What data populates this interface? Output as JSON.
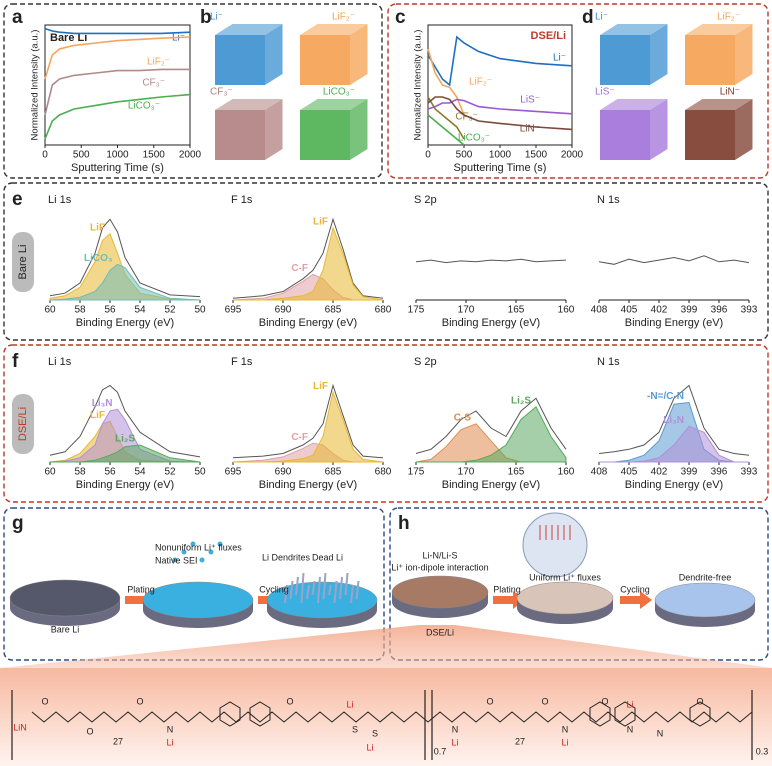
{
  "panel_labels": [
    "a",
    "b",
    "c",
    "d",
    "e",
    "f",
    "g",
    "h"
  ],
  "row_labels": [
    "Bare Li",
    "DSE/Li"
  ],
  "b": {
    "labels": [
      "Li⁻",
      "LiF₂⁻",
      "CF₃⁻",
      "LiCO₃⁻"
    ],
    "colors": [
      "#3a8fd0",
      "#f5a050",
      "#b08080",
      "#4caf50"
    ]
  },
  "d": {
    "labels": [
      "Li⁻",
      "LiF₂⁻",
      "LiS⁻",
      "LiN⁻"
    ],
    "colors": [
      "#3a8fd0",
      "#f5a050",
      "#a070d8",
      "#7b3a2a"
    ]
  },
  "g": {
    "texts": [
      "Nonuniform Li⁺ fluxes",
      "Native SEI",
      "Li Dendrites",
      "Dead Li",
      "Plating",
      "Cycling",
      "Bare Li"
    ]
  },
  "h": {
    "texts": [
      "Li-N/Li-S",
      "Li⁺ ion-dipole interaction",
      "Plating",
      "Uniform Li⁺ fluxes",
      "Cycling",
      "Dendrite-free",
      "DSE/Li"
    ]
  },
  "structure": {
    "labels": [
      "LiN",
      "O",
      "O",
      "27",
      "O",
      "N",
      "Li",
      "O",
      "S",
      "S",
      "Li",
      "Li",
      "0.7",
      "N",
      "Li",
      "O",
      "27",
      "O",
      "N",
      "O",
      "Li",
      "N",
      "Li",
      "N",
      "O",
      "0.3"
    ]
  },
  "chart_data": [
    {
      "type": "line",
      "title": "Bare Li",
      "x_label": "Sputtering Time (s)",
      "y_label": "Normalized Intensity (a.u.)",
      "xlim": [
        0,
        2000
      ],
      "ylim": [
        0,
        1
      ],
      "xticks": [
        0,
        500,
        1000,
        1500,
        2000
      ],
      "x": [
        0,
        100,
        200,
        400,
        700,
        1000,
        1300,
        1600,
        2000
      ],
      "series": [
        {
          "name": "Li⁻",
          "color": "#1f6fc0",
          "values": [
            0.97,
            0.95,
            0.94,
            0.93,
            0.93,
            0.93,
            0.93,
            0.93,
            0.94
          ]
        },
        {
          "name": "LiF₂⁻",
          "color": "#f5a55a",
          "values": [
            0.55,
            0.75,
            0.8,
            0.83,
            0.85,
            0.87,
            0.88,
            0.89,
            0.9
          ]
        },
        {
          "name": "CF₃⁻",
          "color": "#b08a8a",
          "values": [
            0.25,
            0.5,
            0.55,
            0.58,
            0.6,
            0.62,
            0.62,
            0.63,
            0.63
          ]
        },
        {
          "name": "LiCO₃⁻",
          "color": "#4caf50",
          "values": [
            0.05,
            0.2,
            0.25,
            0.3,
            0.33,
            0.36,
            0.38,
            0.4,
            0.42
          ]
        }
      ]
    },
    {
      "type": "line",
      "title": "DSE/Li",
      "x_label": "Sputtering Time (s)",
      "y_label": "Normalized Intensity (a.u.)",
      "xlim": [
        0,
        2000
      ],
      "ylim": [
        0,
        1
      ],
      "xticks": [
        0,
        500,
        1000,
        1500,
        2000
      ],
      "x": [
        0,
        100,
        200,
        300,
        400,
        500,
        700,
        1000,
        1500,
        2000
      ],
      "series": [
        {
          "name": "Li⁻",
          "color": "#1f6fc0",
          "values": [
            0.75,
            0.65,
            0.55,
            0.5,
            0.9,
            0.85,
            0.78,
            0.72,
            0.68,
            0.66
          ]
        },
        {
          "name": "LiF₂⁻",
          "color": "#f5a55a",
          "values": [
            0.8,
            0.6,
            0.5,
            0.48,
            0.4,
            0.25,
            null,
            null,
            null,
            null
          ]
        },
        {
          "name": "LiS⁻",
          "color": "#9b59d0",
          "values": [
            0.3,
            0.32,
            0.35,
            0.35,
            0.38,
            0.37,
            0.32,
            0.3,
            0.28,
            0.26
          ]
        },
        {
          "name": "CF₃⁻",
          "color": "#8b7a2a",
          "values": [
            0.4,
            0.3,
            0.25,
            0.2,
            0.15,
            0.05,
            null,
            null,
            null,
            null
          ]
        },
        {
          "name": "LiN⁻",
          "color": "#7b4a3a",
          "values": [
            0.35,
            0.4,
            0.4,
            0.38,
            0.3,
            0.25,
            0.2,
            0.18,
            0.15,
            0.13
          ]
        },
        {
          "name": "LiCO₃⁻",
          "color": "#4caf50",
          "values": [
            0.25,
            0.2,
            0.15,
            0.1,
            0.05,
            0,
            null,
            null,
            null,
            null
          ]
        }
      ]
    },
    {
      "type": "line",
      "title": "Li 1s",
      "x_label": "Binding Energy (eV)",
      "xlim": [
        60,
        50
      ],
      "ylim": [
        0,
        1
      ],
      "xticks": [
        60,
        58,
        56,
        54,
        52,
        50
      ],
      "x": [
        60,
        59,
        58,
        57,
        56.5,
        56,
        55.5,
        55,
        54,
        52,
        50
      ],
      "series": [
        {
          "color": "#555555",
          "values": [
            0.05,
            0.08,
            0.2,
            0.55,
            0.85,
            0.95,
            0.8,
            0.5,
            0.2,
            0.06,
            0.04
          ]
        },
        {
          "name": "LiF",
          "color": "#e8b830",
          "values": [
            0.02,
            0.05,
            0.15,
            0.45,
            0.7,
            0.78,
            0.55,
            0.3,
            0.08,
            0.01,
            0
          ]
        },
        {
          "name": "LiCO₃",
          "color": "#6fbcb8",
          "values": [
            0,
            0.01,
            0.03,
            0.1,
            0.2,
            0.35,
            0.42,
            0.38,
            0.15,
            0.02,
            0
          ]
        }
      ]
    },
    {
      "type": "line",
      "title": "F 1s",
      "x_label": "Binding Energy (eV)",
      "xlim": [
        695,
        680
      ],
      "ylim": [
        0,
        1
      ],
      "xticks": [
        695,
        690,
        685,
        680
      ],
      "x": [
        695,
        692,
        690,
        688,
        687,
        686,
        685,
        684,
        683,
        682,
        680
      ],
      "series": [
        {
          "color": "#555555",
          "values": [
            0.02,
            0.05,
            0.1,
            0.25,
            0.35,
            0.55,
            0.95,
            0.6,
            0.2,
            0.05,
            0.02
          ]
        },
        {
          "name": "C-F",
          "color": "#e0a0a8",
          "values": [
            0,
            0.02,
            0.08,
            0.22,
            0.3,
            0.25,
            0.12,
            0.03,
            0,
            0,
            0
          ]
        },
        {
          "name": "LiF",
          "color": "#e8b830",
          "values": [
            0,
            0,
            0.02,
            0.05,
            0.1,
            0.35,
            0.85,
            0.55,
            0.18,
            0.04,
            0
          ]
        }
      ]
    },
    {
      "type": "line",
      "title": "S 2p",
      "x_label": "Binding Energy (eV)",
      "xlim": [
        175,
        160
      ],
      "ylim": [
        0,
        1
      ],
      "xticks": [
        175,
        170,
        165,
        160
      ],
      "x": [
        175,
        173.5,
        172,
        170.5,
        169,
        167.5,
        166,
        164.5,
        163,
        161.5,
        160
      ],
      "series": [
        {
          "color": "#555555",
          "values": [
            0.45,
            0.47,
            0.44,
            0.46,
            0.45,
            0.47,
            0.46,
            0.48,
            0.45,
            0.46,
            0.47
          ]
        }
      ]
    },
    {
      "type": "line",
      "title": "N 1s",
      "x_label": "Binding Energy (eV)",
      "xlim": [
        408,
        393
      ],
      "ylim": [
        0,
        1
      ],
      "xticks": [
        408,
        405,
        402,
        399,
        396,
        393
      ],
      "x": [
        408,
        406.5,
        405,
        403.5,
        402,
        400.5,
        399,
        397.5,
        396,
        394.5,
        393
      ],
      "series": [
        {
          "color": "#555555",
          "values": [
            0.45,
            0.42,
            0.48,
            0.44,
            0.47,
            0.5,
            0.46,
            0.52,
            0.45,
            0.47,
            0.44
          ]
        }
      ]
    },
    {
      "type": "line",
      "title": "Li 1s",
      "x_label": "Binding Energy (eV)",
      "xlim": [
        60,
        50
      ],
      "ylim": [
        0,
        1
      ],
      "xticks": [
        60,
        58,
        56,
        54,
        52,
        50
      ],
      "x": [
        60,
        59,
        58,
        57,
        56.5,
        56,
        55.5,
        55,
        54,
        52,
        50
      ],
      "series": [
        {
          "color": "#555555",
          "values": [
            0.08,
            0.12,
            0.3,
            0.65,
            0.85,
            0.9,
            0.82,
            0.6,
            0.35,
            0.12,
            0.06
          ]
        },
        {
          "name": "LiF",
          "color": "#e8b830",
          "values": [
            0,
            0.02,
            0.1,
            0.3,
            0.45,
            0.48,
            0.3,
            0.12,
            0.02,
            0,
            0
          ]
        },
        {
          "name": "Li₃N",
          "color": "#b090d8",
          "values": [
            0,
            0.01,
            0.05,
            0.2,
            0.45,
            0.6,
            0.62,
            0.5,
            0.15,
            0.01,
            0
          ]
        },
        {
          "name": "Li₂S",
          "color": "#5aa860",
          "values": [
            0,
            0,
            0,
            0.02,
            0.05,
            0.08,
            0.12,
            0.18,
            0.2,
            0.05,
            0
          ]
        }
      ]
    },
    {
      "type": "line",
      "title": "F 1s",
      "x_label": "Binding Energy (eV)",
      "xlim": [
        695,
        680
      ],
      "ylim": [
        0,
        1
      ],
      "xticks": [
        695,
        690,
        685,
        680
      ],
      "x": [
        695,
        692,
        690,
        688,
        687,
        686,
        685,
        684,
        683,
        682,
        680
      ],
      "series": [
        {
          "color": "#555555",
          "values": [
            0.05,
            0.07,
            0.1,
            0.2,
            0.28,
            0.45,
            0.9,
            0.55,
            0.2,
            0.07,
            0.05
          ]
        },
        {
          "name": "C-F",
          "color": "#e0a0a8",
          "values": [
            0,
            0.02,
            0.06,
            0.16,
            0.22,
            0.2,
            0.1,
            0.02,
            0,
            0,
            0
          ]
        },
        {
          "name": "LiF",
          "color": "#e8b830",
          "values": [
            0,
            0,
            0.01,
            0.04,
            0.08,
            0.3,
            0.82,
            0.5,
            0.15,
            0.03,
            0
          ]
        }
      ]
    },
    {
      "type": "line",
      "title": "S 2p",
      "x_label": "Binding Energy (eV)",
      "xlim": [
        175,
        160
      ],
      "ylim": [
        0,
        1
      ],
      "xticks": [
        175,
        170,
        165,
        160
      ],
      "x": [
        175,
        173.5,
        172,
        170.5,
        169,
        167.5,
        166,
        164.5,
        163,
        161.5,
        160
      ],
      "series": [
        {
          "color": "#555555",
          "values": [
            0.1,
            0.15,
            0.3,
            0.5,
            0.6,
            0.4,
            0.3,
            0.6,
            0.75,
            0.4,
            0.15
          ]
        },
        {
          "name": "C-S",
          "color": "#e08a50",
          "values": [
            0,
            0.03,
            0.18,
            0.38,
            0.45,
            0.25,
            0.05,
            0,
            0,
            0,
            0
          ]
        },
        {
          "name": "Li₂S",
          "color": "#5aa860",
          "values": [
            0,
            0,
            0,
            0,
            0.02,
            0.08,
            0.2,
            0.5,
            0.65,
            0.3,
            0.05
          ]
        }
      ]
    },
    {
      "type": "line",
      "title": "N 1s",
      "x_label": "Binding Energy (eV)",
      "xlim": [
        408,
        393
      ],
      "ylim": [
        0,
        1
      ],
      "xticks": [
        408,
        405,
        402,
        399,
        396,
        393
      ],
      "x": [
        408,
        406.5,
        405,
        403.5,
        402,
        400.5,
        399,
        397.5,
        396,
        394.5,
        393
      ],
      "series": [
        {
          "color": "#555555",
          "values": [
            0.1,
            0.12,
            0.15,
            0.2,
            0.35,
            0.75,
            0.9,
            0.4,
            0.15,
            0.1,
            0.08
          ]
        },
        {
          "name": "-N=/C-N",
          "color": "#5a9ad0",
          "values": [
            0,
            0,
            0.02,
            0.08,
            0.25,
            0.68,
            0.7,
            0.15,
            0.02,
            0,
            0
          ]
        },
        {
          "name": "Li₃N",
          "color": "#b090d8",
          "values": [
            0,
            0,
            0,
            0.01,
            0.05,
            0.2,
            0.42,
            0.35,
            0.08,
            0,
            0
          ]
        }
      ]
    }
  ]
}
